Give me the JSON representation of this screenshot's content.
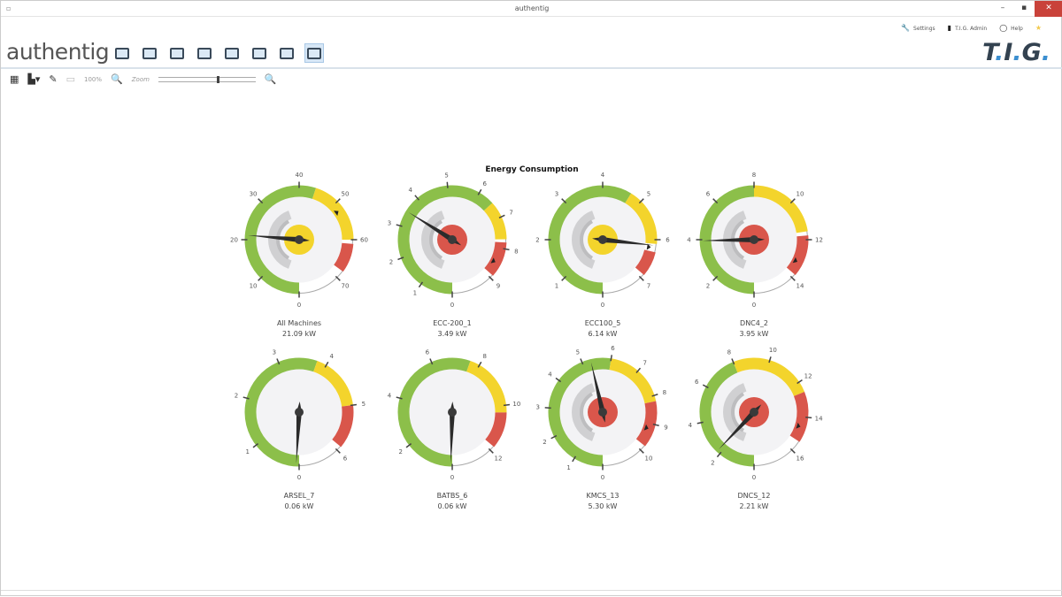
{
  "window": {
    "title": "authentig",
    "minimize": "–",
    "maximize": "▪",
    "close": "✕"
  },
  "header": {
    "logo": "authentig",
    "brand": "T.I.G.",
    "settings": "Settings",
    "user": "T.I.G. Admin",
    "help": "Help",
    "icons": [
      "settings-icon",
      "user-icon",
      "help-icon",
      "star-icon"
    ]
  },
  "nav": {
    "icons": [
      "view-1",
      "view-2",
      "view-3",
      "view-4",
      "view-5",
      "view-6",
      "view-7",
      "view-8"
    ],
    "active": 7
  },
  "toolbar": {
    "zoom_percent": "100%",
    "zoom_label": "Zoom",
    "zoom_level": 0.6
  },
  "colors": {
    "green": "#8cbf4a",
    "yellow": "#f3d42c",
    "red": "#d9564b",
    "gray": "#d9d9d9",
    "inner": "#f3f3f5"
  },
  "chart_data": {
    "type": "gauge",
    "title": "Energy Consumption",
    "unit": "kW",
    "gauges": [
      {
        "name": "All Machines",
        "value": 21.09,
        "value_label": "21.09 kW",
        "max": 70,
        "step": 10,
        "zones": [
          [
            0,
            44,
            "green"
          ],
          [
            44,
            60,
            "yellow"
          ],
          [
            61,
            68,
            "red"
          ]
        ],
        "center": "yellow",
        "marker": 52
      },
      {
        "name": "ECC-200_1",
        "value": 3.49,
        "value_label": "3.49 kW",
        "max": 9,
        "step": 1,
        "zones": [
          [
            0,
            6.5,
            "green"
          ],
          [
            6.5,
            7.7,
            "yellow"
          ],
          [
            7.8,
            8.9,
            "red"
          ]
        ],
        "center": "red",
        "marker": 8.5
      },
      {
        "name": "ECC100_5",
        "value": 6.14,
        "value_label": "6.14 kW",
        "max": 7,
        "step": 1,
        "zones": [
          [
            0,
            4.7,
            "green"
          ],
          [
            4.7,
            6.1,
            "yellow"
          ],
          [
            6.3,
            6.9,
            "red"
          ]
        ],
        "center": "yellow",
        "marker": 6.2
      },
      {
        "name": "DNC4_2",
        "value": 3.95,
        "value_label": "3.95 kW",
        "max": 14,
        "step": 2,
        "zones": [
          [
            0,
            8,
            "green"
          ],
          [
            8,
            11.6,
            "yellow"
          ],
          [
            11.8,
            13.8,
            "red"
          ]
        ],
        "center": "red",
        "marker": 13.2
      },
      {
        "name": "ARSEL_7",
        "value": 0.06,
        "value_label": "0.06 kW",
        "max": 6,
        "step": 1,
        "zones": [
          [
            0,
            3.8,
            "green"
          ],
          [
            3.8,
            5,
            "yellow"
          ],
          [
            5,
            5.9,
            "red"
          ]
        ],
        "center": "none",
        "marker": null
      },
      {
        "name": "BATBS_6",
        "value": 0.06,
        "value_label": "0.06 kW",
        "max": 12,
        "step": 2,
        "zones": [
          [
            0,
            7.6,
            "green"
          ],
          [
            7.6,
            10.3,
            "yellow"
          ],
          [
            10.3,
            11.8,
            "red"
          ]
        ],
        "center": "none",
        "marker": null
      },
      {
        "name": "KMCS_13",
        "value": 5.3,
        "value_label": "5.30 kW",
        "max": 10,
        "step": 1,
        "zones": [
          [
            0,
            6,
            "green"
          ],
          [
            6,
            8.2,
            "yellow"
          ],
          [
            8.2,
            9.8,
            "red"
          ]
        ],
        "center": "red",
        "marker": 9.2
      },
      {
        "name": "DNCS_12",
        "value": 2.21,
        "value_label": "2.21 kW",
        "max": 16,
        "step": 2,
        "zones": [
          [
            0,
            8,
            "green"
          ],
          [
            8,
            12.6,
            "yellow"
          ],
          [
            12.6,
            15.4,
            "red"
          ]
        ],
        "center": "red",
        "marker": 14.6
      }
    ]
  }
}
